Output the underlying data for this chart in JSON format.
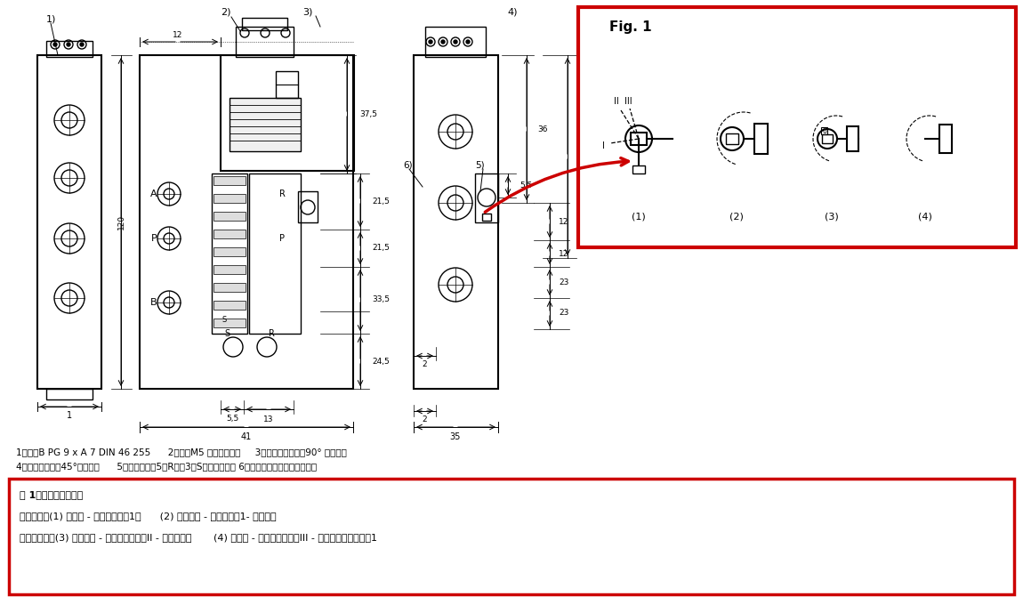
{
  "bg_color": "#ffffff",
  "title": "",
  "fig_width": 11.5,
  "fig_height": 6.8,
  "notes_line1": "1）插头B PG 9 x A 7 DIN 46 255      2）拆下M5 内耗纹盖以后     3）电控插头可间陉90° 进行固定",
  "notes_line2": "4）线圈可以间陉45°进行安装      5）用于排气口5（R）和3（S）的节流螺钉 6）手动控制装置和位置显示器",
  "fig1_title": "Fig. 1",
  "fig1_labels": [
    "(1)",
    "(2)",
    "(3)",
    "(4)"
  ],
  "box_text_line1": "图 1：手动控制装置：",
  "box_text_line2": "手动操作：(1) 带棘父 - 推并转至位置1。      (2) 不带棘父 - 移去扇形片1- 只需推；",
  "box_text_line3": "用工具操作：(3) 不带棘父 - 移去扇形片直到II - 用工具推；       (4) 带棘父 - 移去扇形片直到III - 用工具推并转至位置1",
  "red_box_color": "#cc0000"
}
